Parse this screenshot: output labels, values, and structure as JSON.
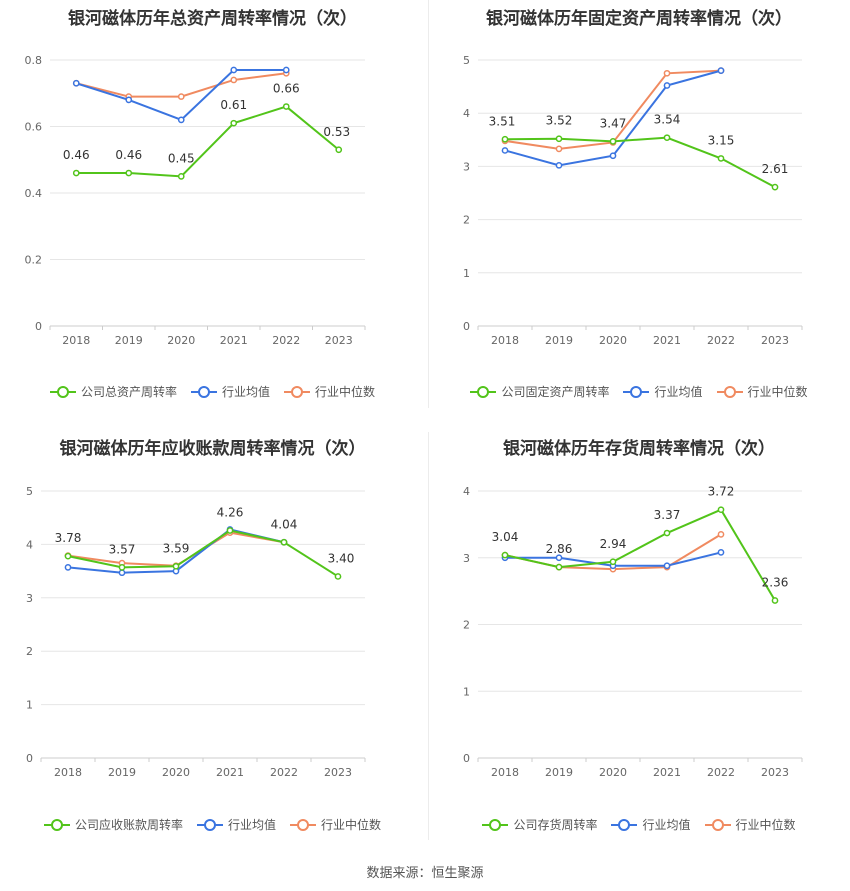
{
  "source": {
    "label": "数据来源：",
    "name": "恒生聚源"
  },
  "colors": {
    "company": "#52c41a",
    "avg": "#3a74e0",
    "median": "#f08a60"
  },
  "chart_data": [
    {
      "type": "line",
      "title": "银河磁体历年总资产周转率情况（次）",
      "categories": [
        "2018",
        "2019",
        "2020",
        "2021",
        "2022",
        "2023"
      ],
      "ylim": [
        0,
        0.8
      ],
      "yticks": [
        "0",
        "0.2",
        "0.4",
        "0.6",
        "0.8"
      ],
      "ytick_values": [
        0,
        0.2,
        0.4,
        0.6,
        0.8
      ],
      "grid": true,
      "legend_position": "bottom",
      "series": [
        {
          "name": "公司总资产周转率",
          "role": "company",
          "values": [
            0.46,
            0.46,
            0.45,
            0.61,
            0.66,
            0.53
          ],
          "labels": [
            "0.46",
            "0.46",
            "0.45",
            "0.61",
            "0.66",
            "0.53"
          ]
        },
        {
          "name": "行业均值",
          "role": "avg",
          "values": [
            0.73,
            0.68,
            0.62,
            0.77,
            0.77,
            null
          ]
        },
        {
          "name": "行业中位数",
          "role": "median",
          "values": [
            0.73,
            0.69,
            0.69,
            0.74,
            0.76,
            null
          ]
        }
      ]
    },
    {
      "type": "line",
      "title": "银河磁体历年固定资产周转率情况（次）",
      "categories": [
        "2018",
        "2019",
        "2020",
        "2021",
        "2022",
        "2023"
      ],
      "ylim": [
        0,
        5
      ],
      "yticks": [
        "0",
        "1",
        "2",
        "3",
        "4",
        "5"
      ],
      "ytick_values": [
        0,
        1,
        2,
        3,
        4,
        5
      ],
      "grid": true,
      "legend_position": "bottom",
      "series": [
        {
          "name": "公司固定资产周转率",
          "role": "company",
          "values": [
            3.51,
            3.52,
            3.47,
            3.54,
            3.15,
            2.61
          ],
          "labels": [
            "3.51",
            "3.52",
            "3.47",
            "3.54",
            "3.15",
            "2.61"
          ]
        },
        {
          "name": "行业均值",
          "role": "avg",
          "values": [
            3.3,
            3.02,
            3.2,
            4.52,
            4.8,
            null
          ]
        },
        {
          "name": "行业中位数",
          "role": "median",
          "values": [
            3.48,
            3.33,
            3.45,
            4.75,
            4.8,
            null
          ]
        }
      ]
    },
    {
      "type": "line",
      "title": "银河磁体历年应收账款周转率情况（次）",
      "categories": [
        "2018",
        "2019",
        "2020",
        "2021",
        "2022",
        "2023"
      ],
      "ylim": [
        0,
        5
      ],
      "yticks": [
        "0",
        "1",
        "2",
        "3",
        "4",
        "5"
      ],
      "ytick_values": [
        0,
        1,
        2,
        3,
        4,
        5
      ],
      "grid": true,
      "legend_position": "bottom",
      "series": [
        {
          "name": "公司应收账款周转率",
          "role": "company",
          "values": [
            3.78,
            3.57,
            3.59,
            4.26,
            4.04,
            3.4
          ],
          "labels": [
            "3.78",
            "3.57",
            "3.59",
            "4.26",
            "4.04",
            "3.40"
          ]
        },
        {
          "name": "行业均值",
          "role": "avg",
          "values": [
            3.57,
            3.47,
            3.5,
            4.28,
            4.04,
            null
          ]
        },
        {
          "name": "行业中位数",
          "role": "median",
          "values": [
            3.79,
            3.65,
            3.6,
            4.22,
            4.04,
            null
          ]
        }
      ]
    },
    {
      "type": "line",
      "title": "银河磁体历年存货周转率情况（次）",
      "categories": [
        "2018",
        "2019",
        "2020",
        "2021",
        "2022",
        "2023"
      ],
      "ylim": [
        0,
        4
      ],
      "yticks": [
        "0",
        "1",
        "2",
        "3",
        "4"
      ],
      "ytick_values": [
        0,
        1,
        2,
        3,
        4
      ],
      "grid": true,
      "legend_position": "bottom",
      "series": [
        {
          "name": "公司存货周转率",
          "role": "company",
          "values": [
            3.04,
            2.86,
            2.94,
            3.37,
            3.72,
            2.36
          ],
          "labels": [
            "3.04",
            "2.86",
            "2.94",
            "3.37",
            "3.72",
            "2.36"
          ]
        },
        {
          "name": "行业均值",
          "role": "avg",
          "values": [
            3.0,
            3.0,
            2.88,
            2.88,
            3.08,
            null
          ]
        },
        {
          "name": "行业中位数",
          "role": "median",
          "values": [
            3.04,
            2.86,
            2.83,
            2.86,
            3.35,
            null
          ]
        }
      ]
    }
  ]
}
